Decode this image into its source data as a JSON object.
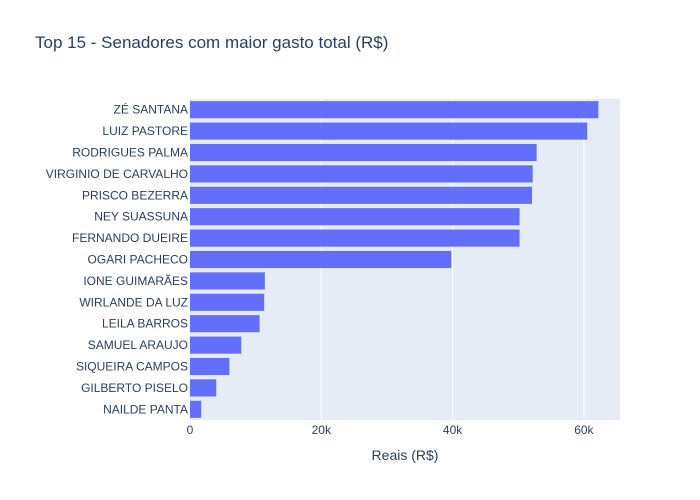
{
  "chart_data": {
    "type": "bar",
    "orientation": "horizontal",
    "title": "Top 15 - Senadores com maior gasto total (R$)",
    "xlabel": "Reais (R$)",
    "ylabel": "",
    "xlim": [
      0,
      65500
    ],
    "x_ticks": [
      {
        "value": 0,
        "label": "0"
      },
      {
        "value": 20000,
        "label": "20k"
      },
      {
        "value": 40000,
        "label": "40k"
      },
      {
        "value": 60000,
        "label": "60k"
      }
    ],
    "categories": [
      "ZÉ SANTANA",
      "LUIZ PASTORE",
      "RODRIGUES PALMA",
      "VIRGINIO DE CARVALHO",
      "PRISCO BEZERRA",
      "NEY SUASSUNA",
      "FERNANDO DUEIRE",
      "OGARI PACHECO",
      "IONE GUIMARÃES",
      "WIRLANDE DA LUZ",
      "LEILA BARROS",
      "SAMUEL ARAUJO",
      "SIQUEIRA CAMPOS",
      "GILBERTO PISELO",
      "NAILDE PANTA"
    ],
    "values": [
      62200,
      60500,
      52800,
      52200,
      52100,
      50200,
      50200,
      39800,
      11400,
      11300,
      10600,
      7800,
      6000,
      4000,
      1700
    ],
    "bar_color": "#636efa",
    "plot_bg": "#e5ecf6",
    "grid": true,
    "legend": "none"
  }
}
